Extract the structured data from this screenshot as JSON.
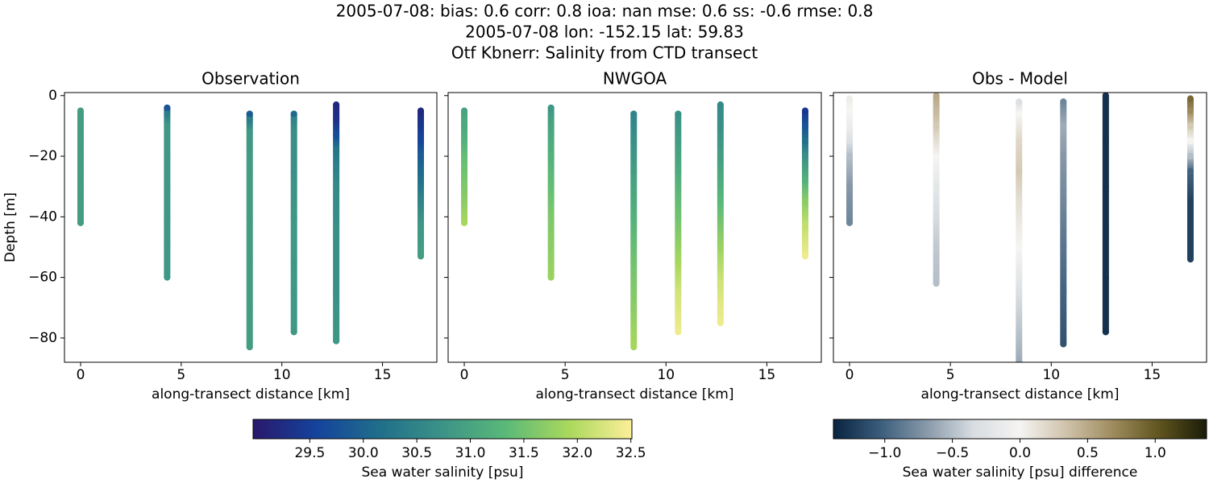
{
  "title": [
    "2005-07-08: bias: 0.6  corr: 0.8  ioa: nan  mse: 0.6  ss: -0.6  rmse: 0.8",
    "2005-07-08 lon: -152.15 lat: 59.83",
    "Otf Kbnerr: Salinity from CTD transect"
  ],
  "chart_data": [
    {
      "type": "scatter",
      "title": "Observation",
      "xlabel": "along-transect distance [km]",
      "ylabel": "Depth [m]",
      "xlim": [
        -0.8,
        17.7
      ],
      "ylim": [
        -88,
        1
      ],
      "xticks": [
        0,
        5,
        10,
        15
      ],
      "yticks": [
        0,
        {
          "value": -20,
          "label": "−20"
        },
        {
          "value": -40,
          "label": "−40"
        },
        {
          "value": -60,
          "label": "−60"
        },
        {
          "value": -80,
          "label": "−80"
        }
      ],
      "clim": [
        28.97,
        32.51
      ],
      "colors": [
        "#2a186c",
        "#14439c",
        "#206e8b",
        "#3c9387",
        "#5ab978",
        "#aad85c",
        "#fdef9a"
      ],
      "series": [
        {
          "x": 0,
          "y": [
            -5,
            -10,
            -15,
            -20,
            -25,
            -30,
            -35,
            -42
          ],
          "values": [
            30.9,
            30.9,
            30.9,
            30.9,
            30.9,
            30.9,
            30.9,
            30.9
          ]
        },
        {
          "x": 4.3,
          "y": [
            -4,
            -6,
            -10,
            -20,
            -30,
            -40,
            -50,
            -60
          ],
          "values": [
            29.8,
            30.4,
            30.8,
            30.8,
            30.8,
            30.8,
            30.8,
            30.8
          ]
        },
        {
          "x": 8.4,
          "y": [
            -6,
            -8,
            -12,
            -25,
            -40,
            -55,
            -70,
            -83
          ],
          "values": [
            29.9,
            30.4,
            30.8,
            30.9,
            30.9,
            30.9,
            30.9,
            30.9
          ]
        },
        {
          "x": 10.6,
          "y": [
            -6,
            -8,
            -12,
            -25,
            -40,
            -55,
            -65,
            -78
          ],
          "values": [
            30.1,
            30.5,
            30.7,
            30.7,
            30.8,
            30.8,
            30.8,
            30.8
          ]
        },
        {
          "x": 12.7,
          "y": [
            -3,
            -8,
            -13,
            -18,
            -30,
            -45,
            -65,
            -81
          ],
          "values": [
            29.2,
            29.3,
            29.7,
            30.3,
            30.6,
            30.7,
            30.7,
            30.8
          ]
        },
        {
          "x": 16.9,
          "y": [
            -5,
            -10,
            -15,
            -20,
            -28,
            -35,
            -43,
            -53
          ],
          "values": [
            29.2,
            29.4,
            29.6,
            29.9,
            30.2,
            30.5,
            30.8,
            30.9
          ]
        }
      ]
    },
    {
      "type": "scatter",
      "title": "NWGOA",
      "xlabel": "along-transect distance [km]",
      "show_ytick_labels": false,
      "xlim": [
        -0.8,
        17.7
      ],
      "ylim": [
        -88,
        1
      ],
      "xticks": [
        0,
        5,
        10,
        15
      ],
      "yticks": [
        0,
        -20,
        -40,
        -60,
        -80
      ],
      "clim": [
        28.97,
        32.51
      ],
      "colors": [
        "#2a186c",
        "#14439c",
        "#206e8b",
        "#3c9387",
        "#5ab978",
        "#aad85c",
        "#fdef9a"
      ],
      "series": [
        {
          "x": 0,
          "y": [
            -5,
            -10,
            -15,
            -20,
            -25,
            -30,
            -35,
            -42
          ],
          "values": [
            31.0,
            31.1,
            31.2,
            31.4,
            31.5,
            31.6,
            31.7,
            31.9
          ]
        },
        {
          "x": 4.3,
          "y": [
            -4,
            -10,
            -20,
            -30,
            -40,
            -50,
            -60
          ],
          "values": [
            30.8,
            31.0,
            31.2,
            31.4,
            31.6,
            31.7,
            31.8
          ]
        },
        {
          "x": 8.4,
          "y": [
            -6,
            -15,
            -25,
            -40,
            -55,
            -70,
            -83
          ],
          "values": [
            30.5,
            30.7,
            30.9,
            31.2,
            31.5,
            31.7,
            31.9
          ]
        },
        {
          "x": 10.6,
          "y": [
            -6,
            -15,
            -25,
            -40,
            -55,
            -65,
            -78
          ],
          "values": [
            30.7,
            30.9,
            31.1,
            31.5,
            31.9,
            32.2,
            32.4
          ]
        },
        {
          "x": 12.7,
          "y": [
            -3,
            -10,
            -20,
            -35,
            -50,
            -62,
            -75
          ],
          "values": [
            30.6,
            30.7,
            30.9,
            31.3,
            31.8,
            32.2,
            32.4
          ]
        },
        {
          "x": 16.9,
          "y": [
            -5,
            -10,
            -15,
            -20,
            -28,
            -35,
            -43,
            -53
          ],
          "values": [
            29.4,
            29.8,
            30.2,
            30.7,
            31.2,
            31.7,
            32.1,
            32.4
          ]
        }
      ]
    },
    {
      "type": "scatter",
      "title": "Obs - Model",
      "xlabel": "along-transect distance [km]",
      "show_ytick_labels": false,
      "xlim": [
        -0.8,
        17.7
      ],
      "ylim": [
        -88,
        1
      ],
      "xticks": [
        0,
        5,
        10,
        15
      ],
      "yticks": [
        0,
        -20,
        -40,
        -60,
        -80
      ],
      "clim": [
        -1.38,
        1.38
      ],
      "colors": [
        "#08233f",
        "#3a5d7c",
        "#8899a9",
        "#d8dde1",
        "#f5f4f2",
        "#cfc2aa",
        "#9e8b5d",
        "#5f531e",
        "#1a1c08"
      ],
      "series": [
        {
          "x": 0,
          "y": [
            -1,
            -5,
            -10,
            -15,
            -20,
            -30,
            -42
          ],
          "values": [
            0.05,
            0.0,
            -0.1,
            -0.3,
            -0.5,
            -0.7,
            -0.8
          ]
        },
        {
          "x": 4.3,
          "y": [
            0,
            -5,
            -10,
            -20,
            -30,
            -40,
            -50,
            -62
          ],
          "values": [
            0.5,
            0.4,
            0.3,
            0.0,
            -0.2,
            -0.35,
            -0.45,
            -0.5
          ]
        },
        {
          "x": 8.4,
          "y": [
            -2,
            -6,
            -15,
            -25,
            -35,
            -50,
            -65,
            -88
          ],
          "values": [
            -0.3,
            0.0,
            0.2,
            0.3,
            0.15,
            0.0,
            -0.3,
            -0.6
          ]
        },
        {
          "x": 10.6,
          "y": [
            -2,
            -10,
            -20,
            -35,
            -50,
            -65,
            -82
          ],
          "values": [
            -0.8,
            -0.6,
            -0.7,
            -0.8,
            -0.9,
            -1.0,
            -1.1
          ]
        },
        {
          "x": 12.7,
          "y": [
            0,
            -15,
            -30,
            -45,
            -60,
            -78
          ],
          "values": [
            -1.3,
            -1.3,
            -1.3,
            -1.3,
            -1.3,
            -1.3
          ]
        },
        {
          "x": 16.9,
          "y": [
            -1,
            -5,
            -10,
            -15,
            -20,
            -25,
            -35,
            -45,
            -54
          ],
          "values": [
            0.9,
            0.7,
            0.3,
            0.0,
            -0.5,
            -1.0,
            -1.2,
            -1.2,
            -1.2
          ]
        }
      ]
    },
    {
      "type": "colorbar",
      "label": "Sea water salinity [psu]",
      "clim": [
        28.97,
        32.51
      ],
      "colors": [
        "#2a186c",
        "#14439c",
        "#206e8b",
        "#3c9387",
        "#5ab978",
        "#aad85c",
        "#fdef9a"
      ],
      "ticks": [
        29.5,
        {
          "value": 30,
          "label": "30.0"
        },
        30.5,
        {
          "value": 31,
          "label": "31.0"
        },
        31.5,
        {
          "value": 32,
          "label": "32.0"
        },
        32.5
      ]
    },
    {
      "type": "colorbar",
      "label": "Sea water salinity [psu] difference",
      "clim": [
        -1.38,
        1.38
      ],
      "colors": [
        "#08233f",
        "#3a5d7c",
        "#8899a9",
        "#d8dde1",
        "#f5f4f2",
        "#cfc2aa",
        "#9e8b5d",
        "#5f531e",
        "#1a1c08"
      ],
      "ticks": [
        {
          "value": -1,
          "label": "−1.0"
        },
        {
          "value": -0.5,
          "label": "−0.5"
        },
        {
          "value": 0,
          "label": "0.0"
        },
        0.5,
        {
          "value": 1,
          "label": "1.0"
        }
      ]
    }
  ]
}
